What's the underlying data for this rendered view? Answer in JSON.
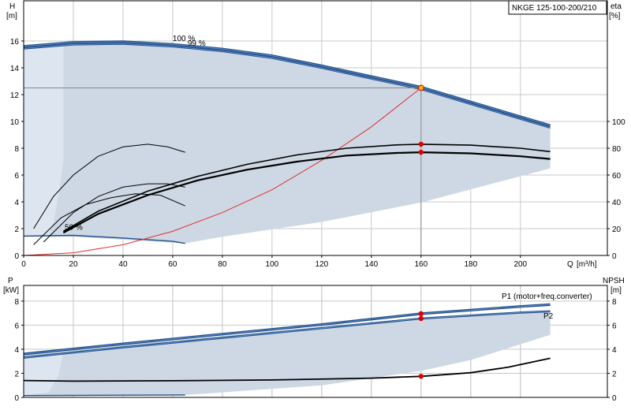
{
  "product": "NKGE 125-100-200/210",
  "colors": {
    "area": "#cdd8e4",
    "area_edge": "#dde6f0",
    "pump_blue": "#1f4e8c",
    "pump_blue_light": "#6f96c4",
    "system": "#e03030",
    "dot": "#e00000",
    "dot_op": "#f5b800",
    "grid": "#c8c8c8",
    "p1_label": "#1f4e8c"
  },
  "chart_data": [
    {
      "type": "line",
      "name": "head-efficiency",
      "xlabel": "Q [m³/h]",
      "xlabel_parts": [
        "Q",
        "[m³/h]"
      ],
      "ylabel": [
        "H",
        "[m]"
      ],
      "ylabel_right": [
        "eta",
        "[%]"
      ],
      "xlim": [
        0,
        235
      ],
      "ylim": [
        0,
        19
      ],
      "ylim_right": [
        0,
        190
      ],
      "xticks": [
        0,
        20,
        40,
        60,
        80,
        100,
        120,
        140,
        160,
        180,
        200
      ],
      "yticks": [
        0,
        2,
        4,
        6,
        8,
        10,
        12,
        14,
        16
      ],
      "yticks_right": [
        0,
        20,
        40,
        60,
        80,
        100
      ],
      "grid": true,
      "operating_point": {
        "x": 160,
        "y": 12.5
      },
      "annotations": [
        {
          "text": "100 %",
          "x": 60,
          "y": 16.0
        },
        {
          "text": "99 %",
          "x": 66,
          "y": 15.65
        },
        {
          "text": "50 %",
          "x": 16.5,
          "y": 1.9
        }
      ],
      "area_boundary": [
        {
          "x": 0,
          "y": 15.55
        },
        {
          "x": 20,
          "y": 15.85
        },
        {
          "x": 40,
          "y": 15.9
        },
        {
          "x": 60,
          "y": 15.7
        },
        {
          "x": 80,
          "y": 15.35
        },
        {
          "x": 100,
          "y": 14.85
        },
        {
          "x": 120,
          "y": 14.1
        },
        {
          "x": 140,
          "y": 13.3
        },
        {
          "x": 160,
          "y": 12.5
        },
        {
          "x": 180,
          "y": 11.4
        },
        {
          "x": 200,
          "y": 10.3
        },
        {
          "x": 212,
          "y": 9.6
        },
        {
          "x": 212,
          "y": 6.5
        },
        {
          "x": 160,
          "y": 3.95
        },
        {
          "x": 120,
          "y": 2.5
        },
        {
          "x": 80,
          "y": 1.4
        },
        {
          "x": 65,
          "y": 0.9
        },
        {
          "x": 20,
          "y": 1.4
        },
        {
          "x": 0,
          "y": 1.4
        }
      ],
      "area_edge_boundary": [
        {
          "x": 0,
          "y": 15.4
        },
        {
          "x": 16,
          "y": 15.6
        },
        {
          "x": 16,
          "y": 7.0
        },
        {
          "x": 14,
          "y": 4.5
        },
        {
          "x": 12,
          "y": 2.4
        },
        {
          "x": 10,
          "y": 1.4
        },
        {
          "x": 0,
          "y": 1.4
        }
      ],
      "series": [
        {
          "name": "100 %",
          "role": "pump_outer",
          "x": [
            0,
            20,
            40,
            60,
            80,
            100,
            120,
            140,
            160,
            180,
            200,
            212
          ],
          "y": [
            15.6,
            15.9,
            15.95,
            15.75,
            15.4,
            14.9,
            14.15,
            13.35,
            12.55,
            11.45,
            10.35,
            9.7
          ]
        },
        {
          "name": "99 %",
          "role": "pump_inner",
          "x": [
            0,
            20,
            40,
            60,
            80,
            100,
            120,
            140,
            160,
            180,
            200,
            212
          ],
          "y": [
            15.45,
            15.75,
            15.8,
            15.6,
            15.25,
            14.75,
            14.0,
            13.2,
            12.42,
            11.3,
            10.2,
            9.55
          ]
        },
        {
          "name": "50 %",
          "role": "pump_low",
          "x": [
            0,
            20,
            40,
            60,
            65
          ],
          "y": [
            1.45,
            1.5,
            1.3,
            1.05,
            0.9
          ]
        },
        {
          "name": "",
          "role": "system",
          "x": [
            0,
            20,
            40,
            60,
            80,
            100,
            120,
            140,
            160
          ],
          "y": [
            0,
            0.2,
            0.8,
            1.8,
            3.2,
            4.9,
            7.1,
            9.6,
            12.5
          ]
        },
        {
          "name": "",
          "role": "eta_outer",
          "axis": "right",
          "x": [
            16,
            30,
            50,
            70,
            90,
            110,
            130,
            150,
            160,
            180,
            200,
            212
          ],
          "y": [
            18,
            33,
            48,
            59,
            68,
            75,
            80,
            82.5,
            83,
            82.3,
            80,
            77.5
          ]
        },
        {
          "name": "",
          "role": "eta_inner",
          "axis": "right",
          "x": [
            16,
            30,
            50,
            70,
            90,
            110,
            130,
            150,
            160,
            180,
            200,
            212
          ],
          "y": [
            17,
            31,
            45,
            56,
            64,
            70,
            74.5,
            76.5,
            77,
            76.2,
            74,
            72
          ]
        },
        {
          "name": "",
          "role": "eta_small",
          "axis": "right",
          "x": [
            4,
            15,
            25,
            35,
            45,
            55,
            65
          ],
          "y": [
            8,
            28,
            38,
            43,
            46,
            45,
            37
          ]
        },
        {
          "name": "",
          "role": "eta_small",
          "axis": "right",
          "x": [
            8,
            20,
            30,
            40,
            50,
            58,
            65
          ],
          "y": [
            10,
            32,
            44,
            51,
            53.5,
            53.5,
            51
          ]
        },
        {
          "name": "",
          "role": "eta_small",
          "axis": "right",
          "x": [
            4,
            12,
            20,
            30,
            40,
            50,
            58,
            65
          ],
          "y": [
            20,
            44,
            60,
            74,
            81,
            83,
            81,
            77
          ]
        }
      ],
      "points": [
        {
          "x": 160,
          "y": 83,
          "axis": "right"
        },
        {
          "x": 160,
          "y": 77,
          "axis": "right"
        }
      ]
    },
    {
      "type": "line",
      "name": "power-npsh",
      "ylabel": [
        "P",
        "[kW]"
      ],
      "ylabel_right": [
        "NPSH",
        "[m]"
      ],
      "xlim": [
        0,
        235
      ],
      "ylim": [
        0,
        9.3
      ],
      "ylim_right": [
        0,
        9.3
      ],
      "yticks": [
        0,
        2,
        4,
        6,
        8
      ],
      "yticks_right": [
        0,
        2,
        4,
        6,
        8
      ],
      "grid": true,
      "area_boundary": [
        {
          "x": 0,
          "y": 3.5
        },
        {
          "x": 40,
          "y": 4.35
        },
        {
          "x": 80,
          "y": 5.1
        },
        {
          "x": 120,
          "y": 5.85
        },
        {
          "x": 160,
          "y": 6.6
        },
        {
          "x": 200,
          "y": 7.0
        },
        {
          "x": 212,
          "y": 7.1
        },
        {
          "x": 212,
          "y": 5.2
        },
        {
          "x": 180,
          "y": 3.1
        },
        {
          "x": 160,
          "y": 2.2
        },
        {
          "x": 120,
          "y": 1.0
        },
        {
          "x": 65,
          "y": 0.2
        },
        {
          "x": 0,
          "y": 0.2
        }
      ],
      "area_edge_boundary": [
        {
          "x": 0,
          "y": 3.35
        },
        {
          "x": 16,
          "y": 3.7
        },
        {
          "x": 14,
          "y": 1.8
        },
        {
          "x": 10,
          "y": 0.4
        },
        {
          "x": 0,
          "y": 0.2
        }
      ],
      "series": [
        {
          "name": "P1 (motor+freq.converter)",
          "role": "pump_outer",
          "x": [
            0,
            40,
            80,
            120,
            160,
            200,
            212
          ],
          "y": [
            3.6,
            4.45,
            5.25,
            6.05,
            6.95,
            7.55,
            7.7
          ]
        },
        {
          "name": "P2",
          "role": "pump_inner",
          "x": [
            0,
            40,
            80,
            120,
            160,
            200,
            212
          ],
          "y": [
            3.3,
            4.15,
            4.95,
            5.75,
            6.55,
            7.05,
            7.15
          ]
        },
        {
          "name": "",
          "role": "pump_low",
          "x": [
            0,
            65
          ],
          "y": [
            0.15,
            0.2
          ]
        },
        {
          "name": "",
          "role": "npsh",
          "axis": "right",
          "x": [
            0,
            20,
            60,
            100,
            140,
            160,
            180,
            195,
            212
          ],
          "y": [
            1.4,
            1.35,
            1.38,
            1.45,
            1.6,
            1.75,
            2.05,
            2.5,
            3.25
          ]
        }
      ],
      "points": [
        {
          "x": 160,
          "y": 6.95
        },
        {
          "x": 160,
          "y": 6.55
        },
        {
          "x": 160,
          "y": 1.75,
          "axis": "right"
        }
      ]
    }
  ]
}
